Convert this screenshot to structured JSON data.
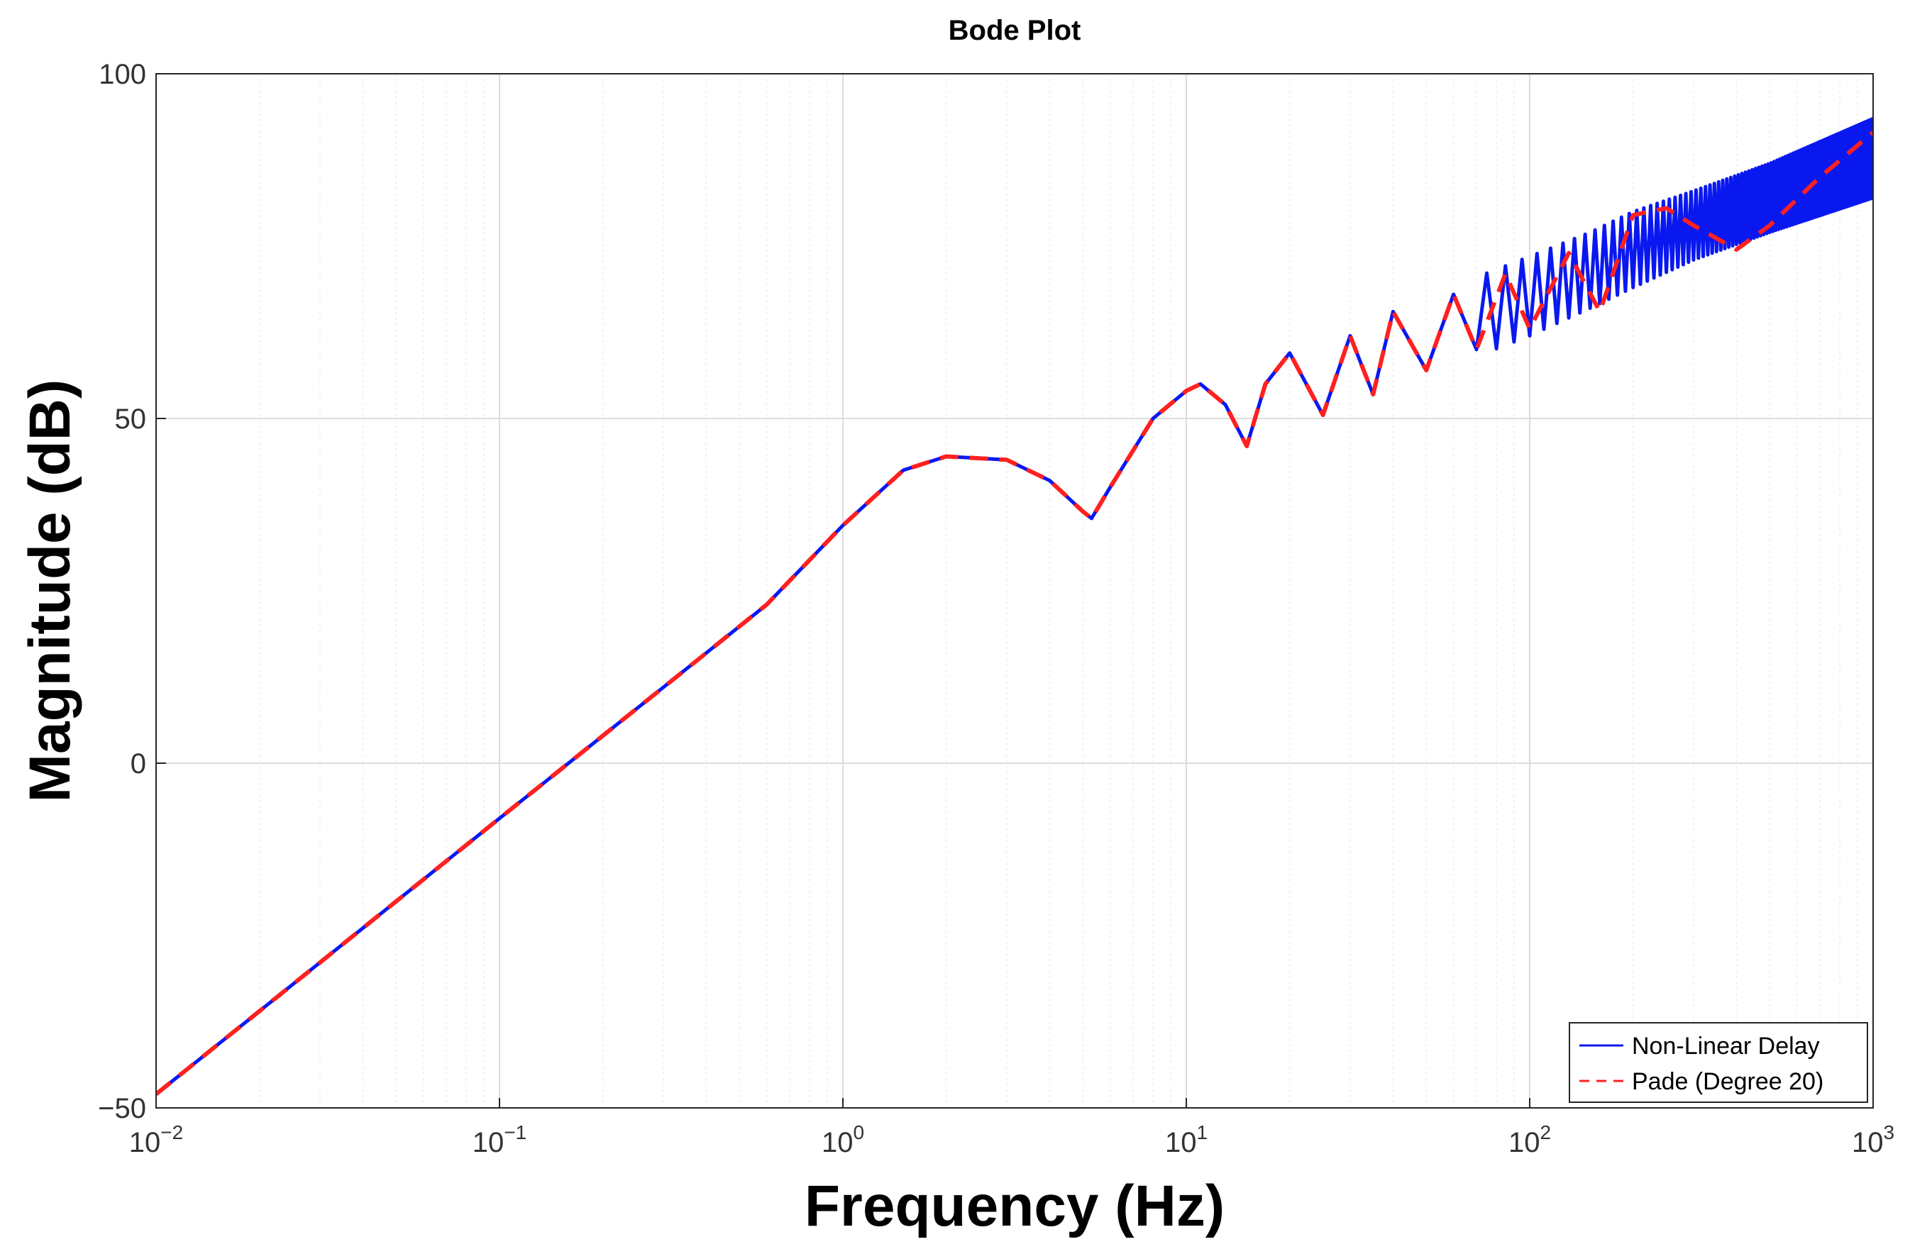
{
  "chart_data": {
    "type": "line",
    "title": "Bode Plot",
    "xlabel": "Frequency (Hz)",
    "ylabel": "Magnitude (dB)",
    "xscale": "log",
    "xlim": [
      0.01,
      1000
    ],
    "ylim": [
      -50,
      100
    ],
    "grid": true,
    "minor_grid": true,
    "legend_position": "bottom-right",
    "x_ticks": [
      {
        "base": "10",
        "exp": "-2"
      },
      {
        "base": "10",
        "exp": "-1"
      },
      {
        "base": "10",
        "exp": "0"
      },
      {
        "base": "10",
        "exp": "1"
      },
      {
        "base": "10",
        "exp": "2"
      },
      {
        "base": "10",
        "exp": "3"
      }
    ],
    "y_ticks": [
      "100",
      "50",
      "0",
      "-50"
    ],
    "y_tick_values": [
      100,
      50,
      0,
      -50
    ],
    "series": [
      {
        "name": "Non-Linear Delay",
        "color": "#0a18f0",
        "style": "solid",
        "x": [
          0.01,
          0.1,
          0.3,
          0.6,
          1.0,
          1.5,
          2.0,
          3.0,
          4.0,
          5.0,
          5.3,
          6.0,
          8.0,
          10.0,
          11.0,
          13.0,
          15.0,
          17.0,
          20.0,
          25.0,
          30.0,
          35.0,
          40.0,
          50.0,
          60.0,
          70.0,
          100.0,
          150.0,
          200.0,
          300.0,
          500.0,
          1000.0
        ],
        "y": [
          -48,
          -8,
          11,
          23,
          34.5,
          42.5,
          44.5,
          44,
          41,
          36.5,
          35.5,
          40,
          50,
          54,
          55,
          52,
          46,
          55,
          59.5,
          50.5,
          62,
          53.5,
          65.5,
          57,
          68,
          60,
          72,
          66,
          77,
          75,
          82,
          88
        ],
        "envelope_upper": [
          [
            70,
            70.5
          ],
          [
            100,
            73.5
          ],
          [
            150,
            77
          ],
          [
            200,
            80
          ],
          [
            300,
            83
          ],
          [
            500,
            87
          ],
          [
            1000,
            93.5
          ]
        ],
        "envelope_lower": [
          [
            70,
            59
          ],
          [
            100,
            62
          ],
          [
            150,
            66
          ],
          [
            200,
            69
          ],
          [
            300,
            73
          ],
          [
            500,
            77
          ],
          [
            1000,
            82
          ]
        ]
      },
      {
        "name": "Pade (Degree 20)",
        "color": "#ff2020",
        "style": "dashed",
        "x": [
          0.01,
          0.1,
          0.3,
          0.6,
          1.0,
          1.5,
          2.0,
          3.0,
          4.0,
          5.0,
          5.3,
          6.0,
          8.0,
          10.0,
          11.0,
          13.0,
          15.0,
          17.0,
          20.0,
          25.0,
          30.0,
          35.0,
          40.0,
          50.0,
          60.0,
          70.0,
          85.0,
          100.0,
          130.0,
          160.0,
          200.0,
          250.0,
          300.0,
          400.0,
          500.0,
          700.0,
          1000.0
        ],
        "y": [
          -48,
          -8,
          11,
          23,
          34.5,
          42.5,
          44.5,
          44,
          41,
          36.5,
          35.5,
          40,
          50,
          54,
          55,
          52,
          46,
          55,
          59.5,
          50.5,
          62,
          53.5,
          65.5,
          57,
          68,
          60,
          71,
          63,
          74,
          65.5,
          79.5,
          80.5,
          78,
          74.5,
          78,
          85,
          91.5
        ]
      }
    ]
  }
}
